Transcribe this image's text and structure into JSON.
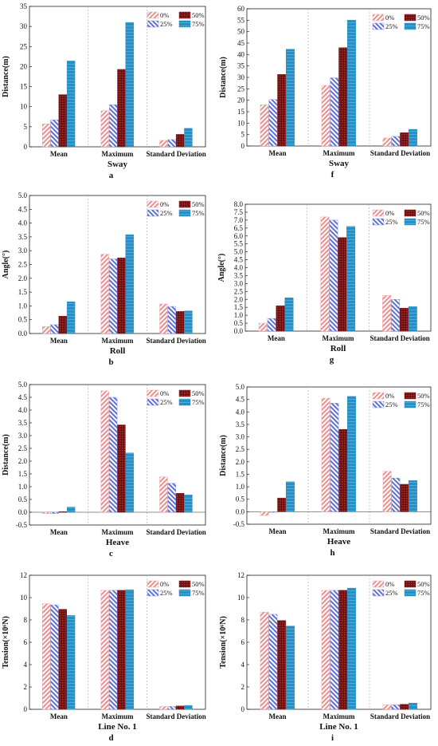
{
  "legend": [
    "0%",
    "25%",
    "50%",
    "75%"
  ],
  "colors": {
    "s0": "#f2a7a7",
    "s1": "#8a97e8",
    "s2": "#7d1d1d",
    "s3": "#2a8ec4"
  },
  "chart_data": [
    {
      "id": "a",
      "type": "bar",
      "panel_label": "a",
      "xlabel": "Sway",
      "ylabel": "Distance(m)",
      "categories": [
        "Mean",
        "Maximum",
        "Standard Deviation"
      ],
      "ylim": [
        0,
        35
      ],
      "yticks": [
        0,
        5,
        10,
        15,
        20,
        25,
        30,
        35
      ],
      "series": [
        {
          "name": "0%",
          "values": [
            5.7,
            9.0,
            1.6
          ]
        },
        {
          "name": "25%",
          "values": [
            6.7,
            10.5,
            1.8
          ]
        },
        {
          "name": "50%",
          "values": [
            13.0,
            19.3,
            3.1
          ]
        },
        {
          "name": "75%",
          "values": [
            21.4,
            31.0,
            4.6
          ]
        }
      ],
      "legend": "top-right",
      "grid": false
    },
    {
      "id": "f",
      "type": "bar",
      "panel_label": "f",
      "xlabel": "Sway",
      "ylabel": "Distance(m)",
      "categories": [
        "Mean",
        "Maximum",
        "Standard Deviation"
      ],
      "ylim": [
        0,
        60
      ],
      "yticks": [
        0,
        5,
        10,
        15,
        20,
        25,
        30,
        35,
        40,
        45,
        50,
        55,
        60
      ],
      "series": [
        {
          "name": "0%",
          "values": [
            18.0,
            26.5,
            3.5
          ]
        },
        {
          "name": "25%",
          "values": [
            20.3,
            29.8,
            4.2
          ]
        },
        {
          "name": "50%",
          "values": [
            31.3,
            43.0,
            5.8
          ]
        },
        {
          "name": "75%",
          "values": [
            42.3,
            55.0,
            7.3
          ]
        }
      ],
      "legend": "top-right",
      "grid": false
    },
    {
      "id": "b",
      "type": "bar",
      "panel_label": "b",
      "xlabel": "Roll",
      "ylabel": "Angle(°)",
      "categories": [
        "Mean",
        "Maximum",
        "Standard Deviation"
      ],
      "ylim": [
        0,
        5
      ],
      "yticks": [
        0.0,
        0.5,
        1.0,
        1.5,
        2.0,
        2.5,
        3.0,
        3.5,
        4.0,
        4.5,
        5.0
      ],
      "series": [
        {
          "name": "0%",
          "values": [
            0.25,
            2.87,
            1.07
          ]
        },
        {
          "name": "25%",
          "values": [
            0.32,
            2.7,
            0.98
          ]
        },
        {
          "name": "50%",
          "values": [
            0.63,
            2.74,
            0.8
          ]
        },
        {
          "name": "75%",
          "values": [
            1.15,
            3.58,
            0.82
          ]
        }
      ],
      "legend": "top-right",
      "grid": false
    },
    {
      "id": "g",
      "type": "bar",
      "panel_label": "g",
      "xlabel": "Roll",
      "ylabel": "Angle(°)",
      "categories": [
        "Mean",
        "Maximum",
        "Standard Deviation"
      ],
      "ylim": [
        0,
        8
      ],
      "yticks": [
        0.0,
        0.5,
        1.0,
        1.5,
        2.0,
        2.5,
        3.0,
        3.5,
        4.0,
        4.5,
        5.0,
        5.5,
        6.0,
        6.5,
        7.0,
        7.5,
        8.0
      ],
      "series": [
        {
          "name": "0%",
          "values": [
            0.5,
            7.2,
            2.25
          ]
        },
        {
          "name": "25%",
          "values": [
            0.8,
            7.0,
            2.0
          ]
        },
        {
          "name": "50%",
          "values": [
            1.6,
            5.9,
            1.45
          ]
        },
        {
          "name": "75%",
          "values": [
            2.1,
            6.6,
            1.55
          ]
        }
      ],
      "legend": "top-right",
      "grid": false
    },
    {
      "id": "c",
      "type": "bar",
      "panel_label": "c",
      "xlabel": "Heave",
      "ylabel": "Distance(m)",
      "categories": [
        "Mean",
        "Maximum",
        "Standard Deviation"
      ],
      "ylim": [
        -0.5,
        5
      ],
      "yticks": [
        -0.5,
        0.0,
        0.5,
        1.0,
        1.5,
        2.0,
        2.5,
        3.0,
        3.5,
        4.0,
        4.5,
        5.0
      ],
      "series": [
        {
          "name": "0%",
          "values": [
            -0.05,
            4.75,
            1.38
          ]
        },
        {
          "name": "25%",
          "values": [
            -0.05,
            4.5,
            1.13
          ]
        },
        {
          "name": "50%",
          "values": [
            0.02,
            3.42,
            0.74
          ]
        },
        {
          "name": "75%",
          "values": [
            0.2,
            2.32,
            0.68
          ]
        }
      ],
      "legend": "top-right",
      "grid": false
    },
    {
      "id": "h",
      "type": "bar",
      "panel_label": "h",
      "xlabel": "Heave",
      "ylabel": "Distance(m)",
      "categories": [
        "Mean",
        "Maximum",
        "Standard Deviation"
      ],
      "ylim": [
        -0.5,
        5
      ],
      "yticks": [
        -0.5,
        0.0,
        0.5,
        1.0,
        1.5,
        2.0,
        2.5,
        3.0,
        3.5,
        4.0,
        4.5,
        5.0
      ],
      "series": [
        {
          "name": "0%",
          "values": [
            -0.15,
            4.55,
            1.62
          ]
        },
        {
          "name": "25%",
          "values": [
            0.0,
            4.35,
            1.35
          ]
        },
        {
          "name": "50%",
          "values": [
            0.55,
            3.3,
            1.1
          ]
        },
        {
          "name": "75%",
          "values": [
            1.2,
            4.62,
            1.25
          ]
        }
      ],
      "legend": "top-right",
      "grid": false
    },
    {
      "id": "d",
      "type": "bar",
      "panel_label": "d",
      "xlabel": "Line No. 1",
      "ylabel": "Tension(×10⁶N)",
      "categories": [
        "Mean",
        "Maximum",
        "Standard Deviation"
      ],
      "ylim": [
        0,
        12
      ],
      "yticks": [
        0,
        2,
        4,
        6,
        8,
        10,
        12
      ],
      "series": [
        {
          "name": "0%",
          "values": [
            9.45,
            10.65,
            0.25
          ]
        },
        {
          "name": "25%",
          "values": [
            9.35,
            10.65,
            0.25
          ]
        },
        {
          "name": "50%",
          "values": [
            8.95,
            10.65,
            0.3
          ]
        },
        {
          "name": "75%",
          "values": [
            8.4,
            10.7,
            0.35
          ]
        }
      ],
      "legend": "top-right",
      "grid": false
    },
    {
      "id": "i",
      "type": "bar",
      "panel_label": "i",
      "xlabel": "Line No. 1",
      "ylabel": "Tension(×10⁶N)",
      "categories": [
        "Mean",
        "Maximum",
        "Standard Deviation"
      ],
      "ylim": [
        0,
        12
      ],
      "yticks": [
        0,
        2,
        4,
        6,
        8,
        10,
        12
      ],
      "series": [
        {
          "name": "0%",
          "values": [
            8.7,
            10.65,
            0.4
          ]
        },
        {
          "name": "25%",
          "values": [
            8.5,
            10.65,
            0.4
          ]
        },
        {
          "name": "50%",
          "values": [
            7.95,
            10.65,
            0.45
          ]
        },
        {
          "name": "75%",
          "values": [
            7.45,
            10.85,
            0.55
          ]
        }
      ],
      "legend": "top-right",
      "grid": false
    }
  ]
}
